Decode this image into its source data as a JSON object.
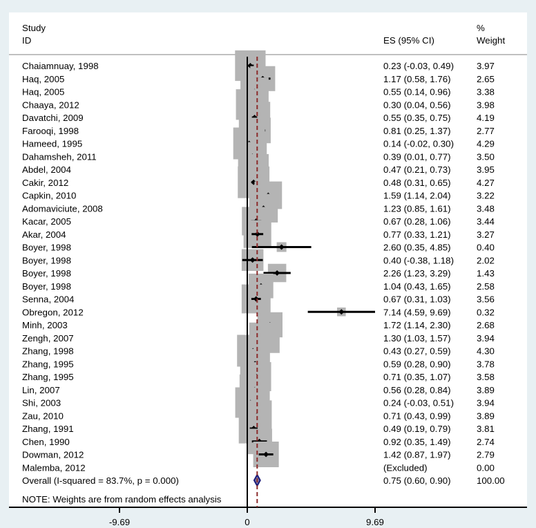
{
  "chart_data": {
    "type": "forest",
    "headers": {
      "study_line1": "Study",
      "study_line2": "ID",
      "es": "ES (95% CI)",
      "weight_line1": "%",
      "weight_line2": "Weight"
    },
    "xaxis": {
      "ticks": [
        -9.69,
        0,
        9.69
      ],
      "tick_labels": [
        "-9.69",
        "0",
        "9.69"
      ],
      "range": [
        -9.69,
        9.69
      ]
    },
    "studies": [
      {
        "id": "Chaiamnuay, 1998",
        "es": 0.23,
        "lo": -0.03,
        "hi": 0.49,
        "weight": 3.97,
        "es_text": "0.23 (-0.03, 0.49)",
        "w_text": "3.97"
      },
      {
        "id": "Haq, 2005",
        "es": 1.17,
        "lo": 0.58,
        "hi": 1.76,
        "weight": 2.65,
        "es_text": "1.17 (0.58, 1.76)",
        "w_text": "2.65"
      },
      {
        "id": "Haq, 2005",
        "es": 0.55,
        "lo": 0.14,
        "hi": 0.96,
        "weight": 3.38,
        "es_text": "0.55 (0.14, 0.96)",
        "w_text": "3.38"
      },
      {
        "id": "Chaaya, 2012",
        "es": 0.3,
        "lo": 0.04,
        "hi": 0.56,
        "weight": 3.98,
        "es_text": "0.30 (0.04, 0.56)",
        "w_text": "3.98"
      },
      {
        "id": "Davatchi, 2009",
        "es": 0.55,
        "lo": 0.35,
        "hi": 0.75,
        "weight": 4.19,
        "es_text": "0.55 (0.35, 0.75)",
        "w_text": "4.19"
      },
      {
        "id": "Farooqi, 1998",
        "es": 0.81,
        "lo": 0.25,
        "hi": 1.37,
        "weight": 2.77,
        "es_text": "0.81 (0.25, 1.37)",
        "w_text": "2.77"
      },
      {
        "id": "Hameed, 1995",
        "es": 0.14,
        "lo": -0.02,
        "hi": 0.3,
        "weight": 4.29,
        "es_text": "0.14 (-0.02, 0.30)",
        "w_text": "4.29"
      },
      {
        "id": "Dahamsheh, 2011",
        "es": 0.39,
        "lo": 0.01,
        "hi": 0.77,
        "weight": 3.5,
        "es_text": "0.39 (0.01, 0.77)",
        "w_text": "3.50"
      },
      {
        "id": "Abdel, 2004",
        "es": 0.47,
        "lo": 0.21,
        "hi": 0.73,
        "weight": 3.95,
        "es_text": "0.47 (0.21, 0.73)",
        "w_text": "3.95"
      },
      {
        "id": "Cakir, 2012",
        "es": 0.48,
        "lo": 0.31,
        "hi": 0.65,
        "weight": 4.27,
        "es_text": "0.48 (0.31, 0.65)",
        "w_text": "4.27"
      },
      {
        "id": "Capkin, 2010",
        "es": 1.59,
        "lo": 1.14,
        "hi": 2.04,
        "weight": 3.22,
        "es_text": "1.59 (1.14, 2.04)",
        "w_text": "3.22"
      },
      {
        "id": "Adomaviciute, 2008",
        "es": 1.23,
        "lo": 0.85,
        "hi": 1.61,
        "weight": 3.48,
        "es_text": "1.23 (0.85, 1.61)",
        "w_text": "3.48"
      },
      {
        "id": "Kacar, 2005",
        "es": 0.67,
        "lo": 0.28,
        "hi": 1.06,
        "weight": 3.44,
        "es_text": "0.67 (0.28, 1.06)",
        "w_text": "3.44"
      },
      {
        "id": "Akar, 2004",
        "es": 0.77,
        "lo": 0.33,
        "hi": 1.21,
        "weight": 3.27,
        "es_text": "0.77 (0.33, 1.21)",
        "w_text": "3.27"
      },
      {
        "id": "Boyer, 1998",
        "es": 2.6,
        "lo": 0.35,
        "hi": 4.85,
        "weight": 0.4,
        "es_text": "2.60 (0.35, 4.85)",
        "w_text": "0.40"
      },
      {
        "id": "Boyer, 1998",
        "es": 0.4,
        "lo": -0.38,
        "hi": 1.18,
        "weight": 2.02,
        "es_text": "0.40 (-0.38, 1.18)",
        "w_text": "2.02"
      },
      {
        "id": "Boyer, 1998",
        "es": 2.26,
        "lo": 1.23,
        "hi": 3.29,
        "weight": 1.43,
        "es_text": "2.26 (1.23, 3.29)",
        "w_text": "1.43"
      },
      {
        "id": "Boyer, 1998",
        "es": 1.04,
        "lo": 0.43,
        "hi": 1.65,
        "weight": 2.58,
        "es_text": "1.04 (0.43, 1.65)",
        "w_text": "2.58"
      },
      {
        "id": "Senna, 2004",
        "es": 0.67,
        "lo": 0.31,
        "hi": 1.03,
        "weight": 3.56,
        "es_text": "0.67 (0.31, 1.03)",
        "w_text": "3.56"
      },
      {
        "id": "Obregon, 2012",
        "es": 7.14,
        "lo": 4.59,
        "hi": 9.69,
        "weight": 0.32,
        "es_text": "7.14 (4.59, 9.69)",
        "w_text": "0.32"
      },
      {
        "id": "Minh, 2003",
        "es": 1.72,
        "lo": 1.14,
        "hi": 2.3,
        "weight": 2.68,
        "es_text": "1.72 (1.14, 2.30)",
        "w_text": "2.68"
      },
      {
        "id": "Zengh, 2007",
        "es": 1.3,
        "lo": 1.03,
        "hi": 1.57,
        "weight": 3.94,
        "es_text": "1.30 (1.03, 1.57)",
        "w_text": "3.94"
      },
      {
        "id": "Zhang, 1998",
        "es": 0.43,
        "lo": 0.27,
        "hi": 0.59,
        "weight": 4.3,
        "es_text": "0.43 (0.27, 0.59)",
        "w_text": "4.30"
      },
      {
        "id": "Zhang, 1995",
        "es": 0.59,
        "lo": 0.28,
        "hi": 0.9,
        "weight": 3.78,
        "es_text": "0.59 (0.28, 0.90)",
        "w_text": "3.78"
      },
      {
        "id": "Zhang, 1995",
        "es": 0.71,
        "lo": 0.35,
        "hi": 1.07,
        "weight": 3.58,
        "es_text": "0.71 (0.35, 1.07)",
        "w_text": "3.58"
      },
      {
        "id": "Lin, 2007",
        "es": 0.56,
        "lo": 0.28,
        "hi": 0.84,
        "weight": 3.89,
        "es_text": "0.56 (0.28, 0.84)",
        "w_text": "3.89"
      },
      {
        "id": "Shi, 2003",
        "es": 0.24,
        "lo": -0.03,
        "hi": 0.51,
        "weight": 3.94,
        "es_text": "0.24 (-0.03, 0.51)",
        "w_text": "3.94"
      },
      {
        "id": "Zau, 2010",
        "es": 0.71,
        "lo": 0.43,
        "hi": 0.99,
        "weight": 3.89,
        "es_text": "0.71 (0.43, 0.99)",
        "w_text": "3.89"
      },
      {
        "id": "Zhang, 1991",
        "es": 0.49,
        "lo": 0.19,
        "hi": 0.79,
        "weight": 3.81,
        "es_text": "0.49 (0.19, 0.79)",
        "w_text": "3.81"
      },
      {
        "id": "Chen, 1990",
        "es": 0.92,
        "lo": 0.35,
        "hi": 1.49,
        "weight": 2.74,
        "es_text": "0.92 (0.35, 1.49)",
        "w_text": "2.74"
      },
      {
        "id": "Dowman, 2012",
        "es": 1.42,
        "lo": 0.87,
        "hi": 1.97,
        "weight": 2.79,
        "es_text": "1.42 (0.87, 1.97)",
        "w_text": "2.79"
      },
      {
        "id": "Malemba, 2012",
        "es": null,
        "lo": null,
        "hi": null,
        "weight": 0.0,
        "es_text": "(Excluded)",
        "w_text": "0.00"
      }
    ],
    "overall": {
      "id": "Overall  (I-squared = 83.7%, p = 0.000)",
      "es": 0.75,
      "lo": 0.6,
      "hi": 0.9,
      "weight": 100.0,
      "es_text": "0.75 (0.60, 0.90)",
      "w_text": "100.00"
    },
    "note": "NOTE: Weights are from random effects analysis",
    "colors": {
      "background": "#e8f0f3",
      "panel": "#ffffff",
      "box": "#b4b4b4",
      "ci_line": "#000000",
      "overall_diamond": "#1a1a7a",
      "overall_line": "#8b2b2b",
      "header_rule": "#c0c0c0"
    }
  }
}
